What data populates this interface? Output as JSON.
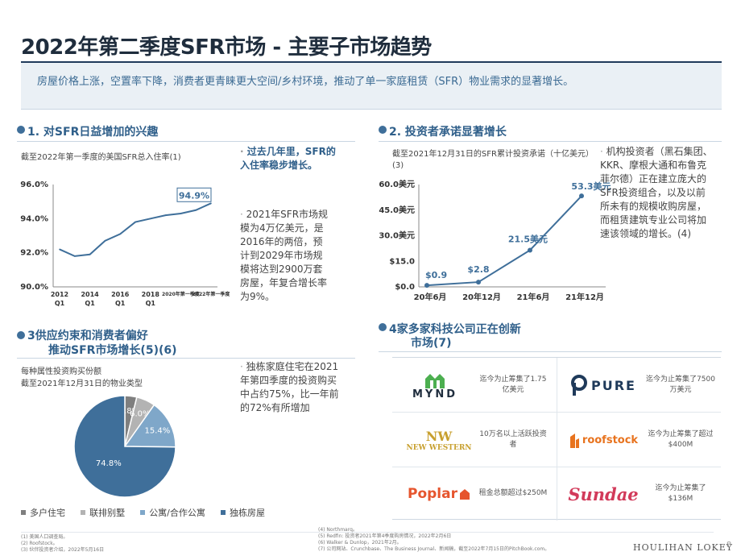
{
  "header": {
    "title": "2022年第二季度SFR市场 - 主要子市场趋势",
    "banner": "房屋价格上涨，空置率下降，消费者更青睐更大空间/乡村环境，推动了单一家庭租赁（SFR）物业需求的显著增长。"
  },
  "sections": {
    "s1": {
      "title": "1. 对SFR日益增加的兴趣",
      "subtitle": "截至2022年第一季度的美国SFR总入住率(1)",
      "bullets": [
        "过去几年里，SFR的入住率稳步增长。",
        "2021年SFR市场规模为4万亿美元，是2016年的两倍，预计到2029年市场规模将达到2900万套房屋，年复合增长率为9%。"
      ],
      "chart_data": {
        "type": "line",
        "x": [
          "2012Q1",
          "2013Q1",
          "2014Q1",
          "2015Q1",
          "2016Q1",
          "2017Q1",
          "2018Q1",
          "2019Q1",
          "2020年第一季度",
          "2021Q1",
          "2022年第一季度"
        ],
        "tick_labels": [
          "2012 Q1",
          "2014 Q1",
          "2016 Q1",
          "2018 Q1",
          "2020年第一季度",
          "2022年第一季度"
        ],
        "values": [
          92.2,
          91.8,
          91.9,
          92.7,
          93.1,
          93.8,
          94.0,
          94.2,
          94.3,
          94.5,
          94.9
        ],
        "y_ticks": [
          "96.0%",
          "94.0%",
          "92.0%",
          "90.0%"
        ],
        "ylim": [
          90,
          96
        ],
        "end_label": "94.9%",
        "color": "#3f6f9a"
      }
    },
    "s2": {
      "title": "2. 投资者承诺显著增长",
      "subtitle": "截至2021年12月31日的SFR累计投资承诺（十亿美元）(3)",
      "bullets": [
        "机构投资者（黑石集团、KKR、摩根大通和布鲁克菲尔德）正在建立庞大的SFR投资组合，以及以前所未有的规模收购房屋，而租赁建筑专业公司将加速该领域的增长。(4)"
      ],
      "chart_data": {
        "type": "line",
        "x": [
          "20年6月",
          "20年12月",
          "21年6月",
          "21年12月"
        ],
        "values": [
          0.9,
          2.8,
          21.5,
          53.3
        ],
        "data_labels": [
          "$0.9",
          "$2.8",
          "21.5美元",
          "53.3美元"
        ],
        "y_ticks": [
          "60.0美元",
          "45.0美元",
          "30.0美元",
          "$15.0",
          "$0.0"
        ],
        "ylim": [
          0,
          60
        ],
        "color": "#3f6f9a"
      }
    },
    "s3": {
      "title_line1": "3供应约束和消费者偏好",
      "title_line2": "推动SFR市场增长(5)(6)",
      "subtitle_line1": "每种属性投资购买份额",
      "subtitle_line2": "截至2021年12月31日的物业类型",
      "bullets": [
        "独栋家庭住宅在2021年第四季度的投资购买中占约75%，比一年前的72%有所增加"
      ],
      "chart_data": {
        "type": "pie",
        "slices": [
          {
            "name": "多户住宅",
            "value": 3.8,
            "label": "3.8%",
            "color": "#7f7f7f"
          },
          {
            "name": "联排别墅",
            "value": 6.0,
            "label": "6.0%",
            "color": "#b3b3b3"
          },
          {
            "name": "公寓/合作公寓",
            "value": 15.4,
            "label": "15.4%",
            "color": "#7fa7c9"
          },
          {
            "name": "独栋房屋",
            "value": 74.8,
            "label": "74.8%",
            "color": "#3f6f9a"
          }
        ]
      }
    },
    "s4": {
      "title_line1": "4家多家科技公司正在创新",
      "title_line2": "市场(7)",
      "companies": [
        {
          "logo": "MYND",
          "desc": "迄今为止筹集了1.75亿美元"
        },
        {
          "logo": "PURE",
          "desc": "迄今为止筹集了7500万美元"
        },
        {
          "logo": "NEW WESTERN",
          "desc": "10万名以上活跃投资者"
        },
        {
          "logo": "roofstock",
          "desc": "迄今为止筹集了超过$400M"
        },
        {
          "logo": "Poplar",
          "desc": "租金总额超过$250M"
        },
        {
          "logo": "Sundae",
          "desc": "迄今为止筹集了$136M"
        }
      ]
    }
  },
  "footnotes": {
    "left": [
      "(1) 美国人口调查局。",
      "(2) Roofstock。",
      "(3) 伙伴投资者介绍，2022年5月16日"
    ],
    "right": [
      "(4) Northmarq。",
      "(5) Redfin: 投资者2021年第4季度购房情况，2022年2月6日",
      "(6) Walker & Dunlop，2021年2月。",
      "(7) 公司网站、Crunchbase、The Business Journal、新闻稿，截至2022年7月15日的PitchBook.com。"
    ]
  },
  "brand": "HOULIHAN LOKEY",
  "page_number": "8"
}
